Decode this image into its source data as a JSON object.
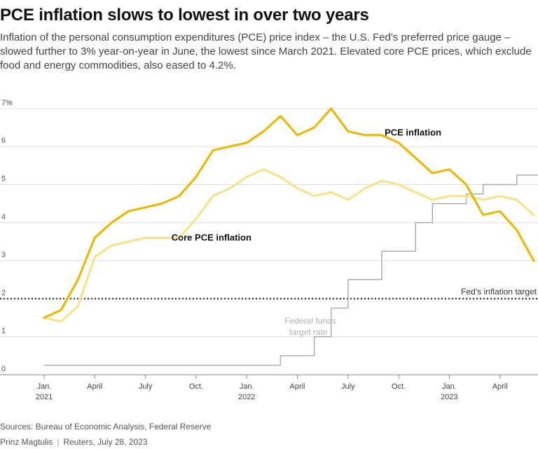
{
  "title": "PCE inflation slows to lowest in over two years",
  "subtitle": "Inflation of the personal consumption expenditures (PCE) price index – the U.S. Fed’s preferred price gauge – slowed further to 3% year-on-year in June, the lowest since March 2021. Elevated core PCE prices, which exclude food and energy commodities, also eased to 4.2%.",
  "footer": {
    "sources": "Sources: Bureau of Economic Analysis, Federal Reserve",
    "author": "Prinz Magtulis",
    "publisher_date": "Reuters, July 28, 2023"
  },
  "chart_data": {
    "type": "line",
    "ylim": [
      0,
      7
    ],
    "y_ticks": [
      "0",
      "1",
      "2",
      "3",
      "4",
      "5",
      "6",
      "7%"
    ],
    "x_months": [
      "2021-01",
      "2021-02",
      "2021-03",
      "2021-04",
      "2021-05",
      "2021-06",
      "2021-07",
      "2021-08",
      "2021-09",
      "2021-10",
      "2021-11",
      "2021-12",
      "2022-01",
      "2022-02",
      "2022-03",
      "2022-04",
      "2022-05",
      "2022-06",
      "2022-07",
      "2022-08",
      "2022-09",
      "2022-10",
      "2022-11",
      "2022-12",
      "2023-01",
      "2023-02",
      "2023-03",
      "2023-04",
      "2023-05",
      "2023-06"
    ],
    "x_ticks": [
      {
        "month": "2021-01",
        "label": "Jan.",
        "year": "2021"
      },
      {
        "month": "2021-04",
        "label": "April",
        "year": ""
      },
      {
        "month": "2021-07",
        "label": "July",
        "year": ""
      },
      {
        "month": "2021-10",
        "label": "Oct.",
        "year": ""
      },
      {
        "month": "2022-01",
        "label": "Jan.",
        "year": "2022"
      },
      {
        "month": "2022-04",
        "label": "April",
        "year": ""
      },
      {
        "month": "2022-07",
        "label": "July",
        "year": ""
      },
      {
        "month": "2022-10",
        "label": "Oct.",
        "year": ""
      },
      {
        "month": "2023-01",
        "label": "Jan.",
        "year": "2023"
      },
      {
        "month": "2023-04",
        "label": "April",
        "year": ""
      }
    ],
    "series": [
      {
        "name": "PCE inflation",
        "color": "#e8b90d",
        "values": [
          1.5,
          1.7,
          2.5,
          3.6,
          4.0,
          4.3,
          4.4,
          4.5,
          4.7,
          5.2,
          5.9,
          6.0,
          6.1,
          6.4,
          6.8,
          6.3,
          6.5,
          7.0,
          6.4,
          6.3,
          6.3,
          6.1,
          5.7,
          5.3,
          5.4,
          5.0,
          4.2,
          4.3,
          3.8,
          3.0
        ]
      },
      {
        "name": "Core PCE inflation",
        "color": "#f7e28a",
        "values": [
          1.5,
          1.4,
          1.8,
          3.1,
          3.4,
          3.5,
          3.6,
          3.6,
          3.6,
          4.1,
          4.7,
          4.9,
          5.2,
          5.4,
          5.2,
          4.9,
          4.7,
          4.8,
          4.6,
          4.9,
          5.1,
          5.0,
          4.8,
          4.6,
          4.7,
          4.7,
          4.6,
          4.7,
          4.6,
          4.2
        ]
      },
      {
        "name": "Federal funds target rate",
        "color": "#a8a8a8",
        "step": true,
        "points": [
          [
            "2021-01",
            0.25
          ],
          [
            "2022-03",
            0.5
          ],
          [
            "2022-05",
            1.0
          ],
          [
            "2022-06",
            1.75
          ],
          [
            "2022-07",
            2.5
          ],
          [
            "2022-09",
            3.25
          ],
          [
            "2022-11",
            4.0
          ],
          [
            "2022-12",
            4.5
          ],
          [
            "2023-02",
            4.75
          ],
          [
            "2023-03",
            5.0
          ],
          [
            "2023-05",
            5.25
          ],
          [
            "2023-06",
            5.25
          ]
        ]
      }
    ],
    "reference_line": {
      "label": "Fed’s inflation target",
      "value": 2
    },
    "labels": {
      "pce": "PCE inflation",
      "core": "Core PCE inflation",
      "ffr_line1": "Federal funds",
      "ffr_line2": "target rate"
    },
    "grid": true,
    "legend": "direct labels"
  }
}
